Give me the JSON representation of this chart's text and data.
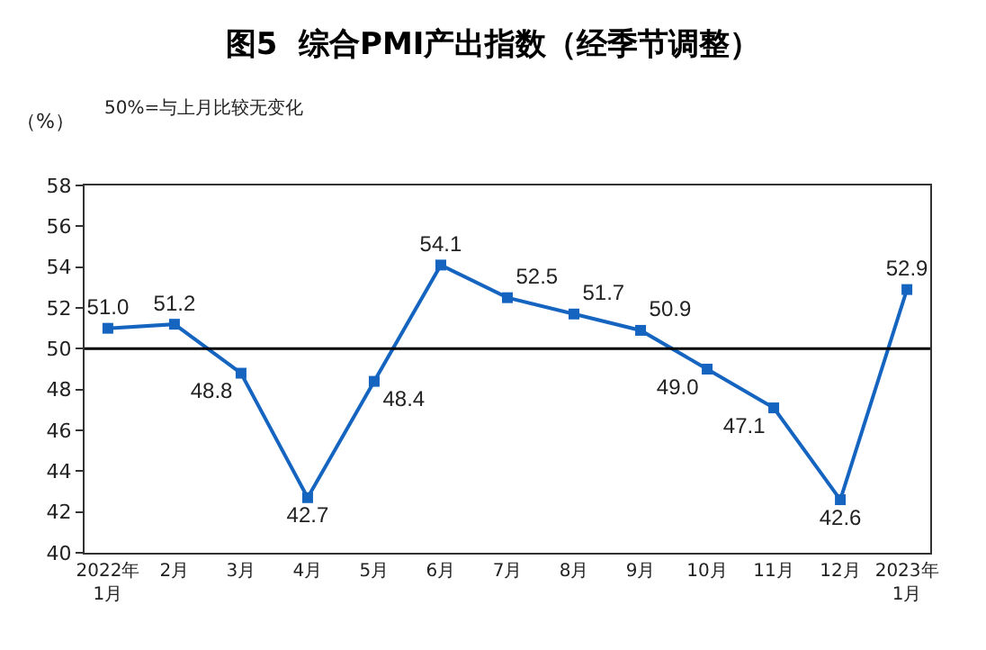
{
  "chart_data": {
    "type": "line",
    "title": "图5  综合PMI产出指数（经季节调整）",
    "ylabel": "（%）",
    "annotations": [
      "50%=与上月比较无变化"
    ],
    "categories": [
      "2022年\n1月",
      "2月",
      "3月",
      "4月",
      "5月",
      "6月",
      "7月",
      "8月",
      "9月",
      "10月",
      "11月",
      "12月",
      "2023年\n1月"
    ],
    "series": [
      {
        "color": "#1565c0",
        "values": [
          51.0,
          51.2,
          48.8,
          42.7,
          48.4,
          54.1,
          52.5,
          51.7,
          50.9,
          49.0,
          47.1,
          42.6,
          52.9
        ],
        "value_labels": [
          "51.0",
          "51.2",
          "48.8",
          "42.7",
          "48.4",
          "54.1",
          "52.5",
          "51.7",
          "50.9",
          "49.0",
          "47.1",
          "42.6",
          "52.9"
        ]
      }
    ],
    "ylim": [
      40,
      58
    ],
    "yticks": [
      40,
      42,
      44,
      46,
      48,
      50,
      52,
      54,
      56,
      58
    ],
    "ref_lines": [
      {
        "axis": "y",
        "value": 50,
        "color": "#000000"
      }
    ],
    "grid": false,
    "marker": "square",
    "line_style": "solid"
  }
}
